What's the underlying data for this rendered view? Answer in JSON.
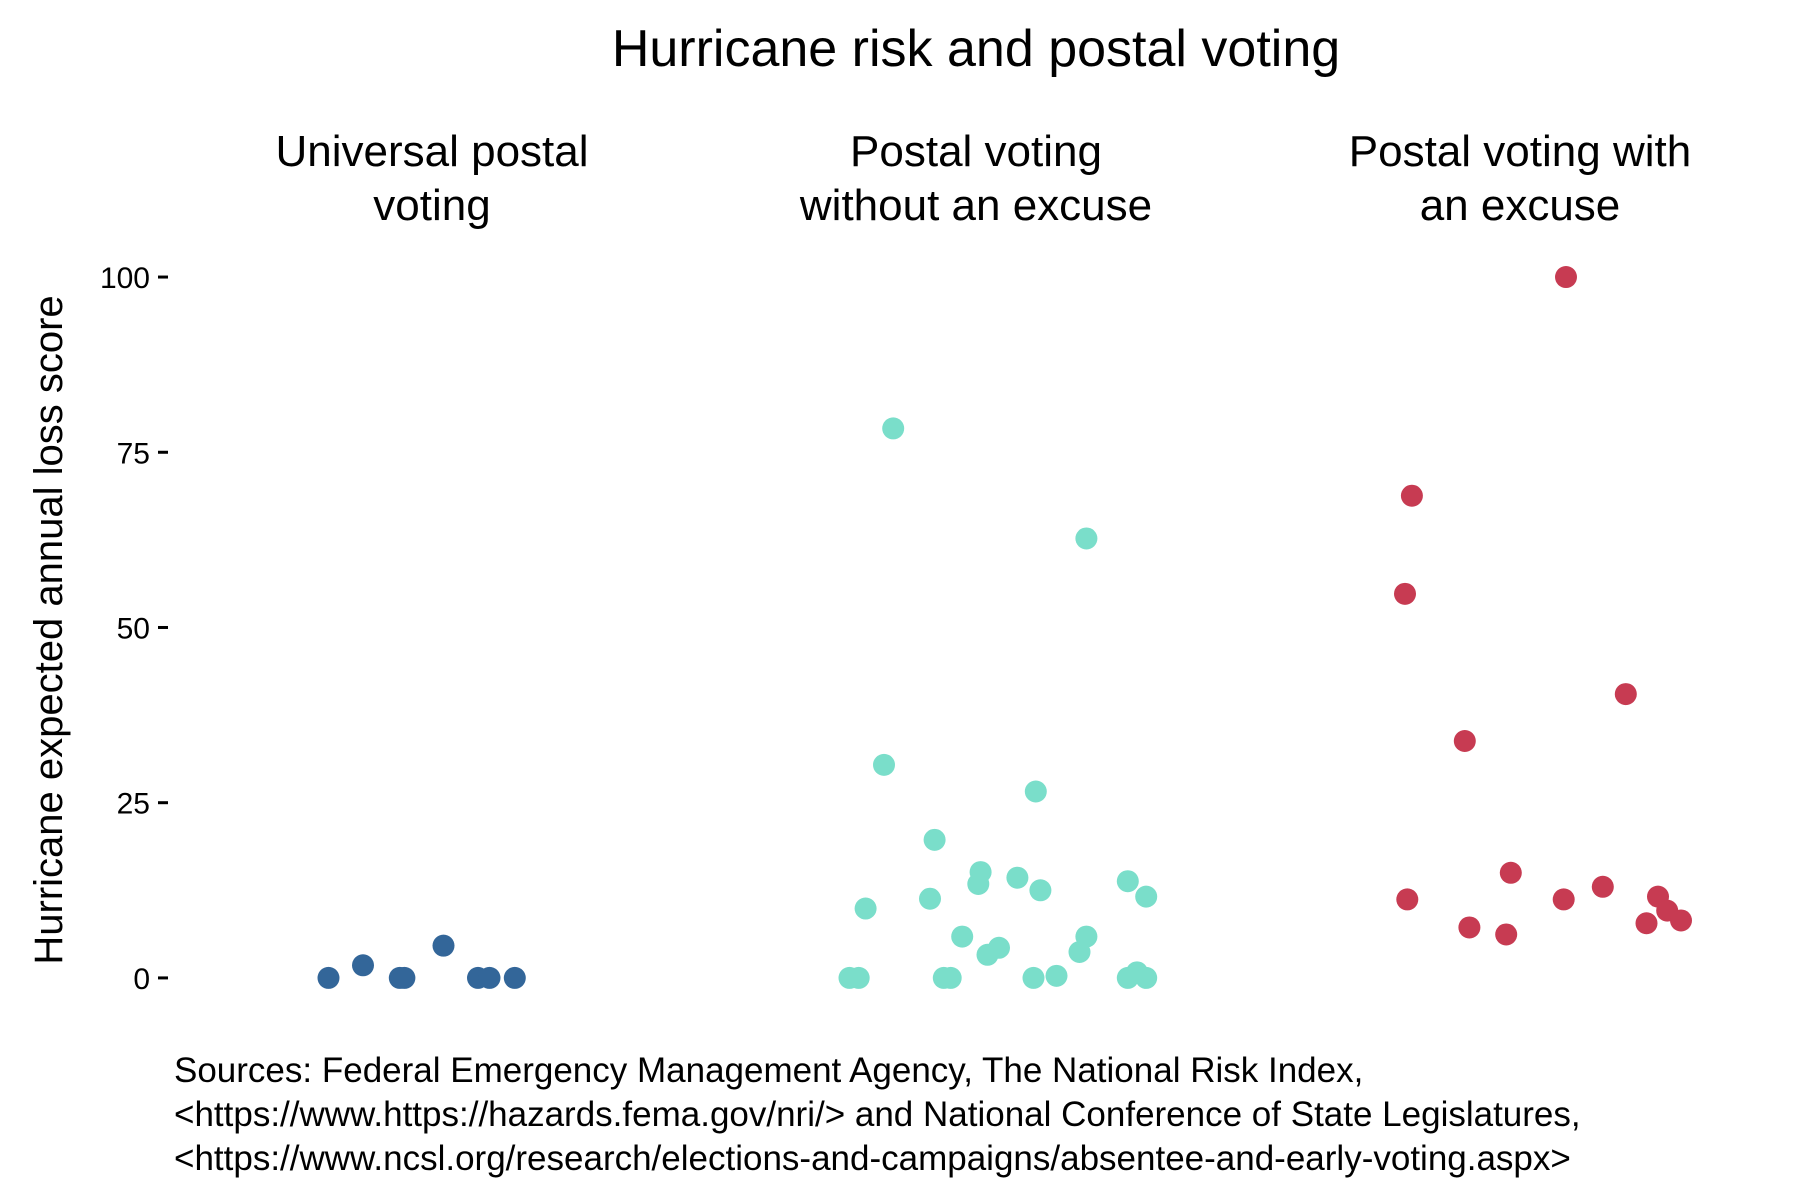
{
  "chart_data": {
    "type": "scatter",
    "title": "Hurricane risk and postal voting",
    "ylabel": "Hurricane expected annual loss score",
    "ylim": [
      -9,
      105
    ],
    "yticks": [
      0,
      25,
      50,
      75,
      100
    ],
    "grid": false,
    "legend": "none",
    "panels": [
      {
        "label": [
          "Universal postal",
          "voting"
        ],
        "color": "#336699",
        "points": [
          {
            "x": -0.45,
            "y": 0.0
          },
          {
            "x": -0.3,
            "y": 1.8
          },
          {
            "x": -0.14,
            "y": 0.0
          },
          {
            "x": -0.12,
            "y": 0.0
          },
          {
            "x": 0.05,
            "y": 4.6
          },
          {
            "x": 0.2,
            "y": 0.0
          },
          {
            "x": 0.25,
            "y": 0.0
          },
          {
            "x": 0.36,
            "y": 0.0
          }
        ]
      },
      {
        "label": [
          "Postal voting",
          "without an excuse"
        ],
        "color": "#7ADECA",
        "points": [
          {
            "x": -0.36,
            "y": 78.4
          },
          {
            "x": 0.48,
            "y": 62.7
          },
          {
            "x": -0.4,
            "y": 30.4
          },
          {
            "x": 0.26,
            "y": 26.6
          },
          {
            "x": -0.18,
            "y": 19.7
          },
          {
            "x": 0.02,
            "y": 15.1
          },
          {
            "x": 0.18,
            "y": 14.3
          },
          {
            "x": 0.01,
            "y": 13.4
          },
          {
            "x": 0.28,
            "y": 12.5
          },
          {
            "x": 0.66,
            "y": 13.8
          },
          {
            "x": 0.74,
            "y": 11.6
          },
          {
            "x": -0.2,
            "y": 11.3
          },
          {
            "x": -0.48,
            "y": 9.9
          },
          {
            "x": -0.06,
            "y": 5.9
          },
          {
            "x": 0.1,
            "y": 4.3
          },
          {
            "x": 0.05,
            "y": 3.3
          },
          {
            "x": 0.48,
            "y": 5.9
          },
          {
            "x": 0.45,
            "y": 3.7
          },
          {
            "x": 0.7,
            "y": 0.8
          },
          {
            "x": -0.55,
            "y": 0.0
          },
          {
            "x": -0.51,
            "y": 0.0
          },
          {
            "x": -0.14,
            "y": 0.0
          },
          {
            "x": -0.11,
            "y": 0.0
          },
          {
            "x": 0.25,
            "y": 0.0
          },
          {
            "x": 0.35,
            "y": 0.3
          },
          {
            "x": 0.66,
            "y": 0.0
          },
          {
            "x": 0.74,
            "y": 0.0
          }
        ]
      },
      {
        "label": [
          "Postal voting with",
          "an excuse"
        ],
        "color": "#C73B52",
        "points": [
          {
            "x": 0.2,
            "y": 100.0
          },
          {
            "x": -0.47,
            "y": 68.8
          },
          {
            "x": -0.5,
            "y": 54.8
          },
          {
            "x": 0.46,
            "y": 40.5
          },
          {
            "x": -0.24,
            "y": 33.8
          },
          {
            "x": -0.04,
            "y": 15.0
          },
          {
            "x": 0.36,
            "y": 13.0
          },
          {
            "x": 0.19,
            "y": 11.2
          },
          {
            "x": -0.49,
            "y": 11.2
          },
          {
            "x": 0.6,
            "y": 11.6
          },
          {
            "x": 0.64,
            "y": 9.6
          },
          {
            "x": 0.55,
            "y": 7.8
          },
          {
            "x": 0.7,
            "y": 8.2
          },
          {
            "x": -0.22,
            "y": 7.2
          },
          {
            "x": -0.06,
            "y": 6.2
          }
        ]
      }
    ],
    "caption": [
      "Sources: Federal Emergency Management Agency, The National Risk Index,",
      " <https://www.https://hazards.fema.gov/nri/> and National Conference of State Legislatures,",
      " <https://www.ncsl.org/research/elections-and-campaigns/absentee-and-early-voting.aspx>"
    ]
  }
}
